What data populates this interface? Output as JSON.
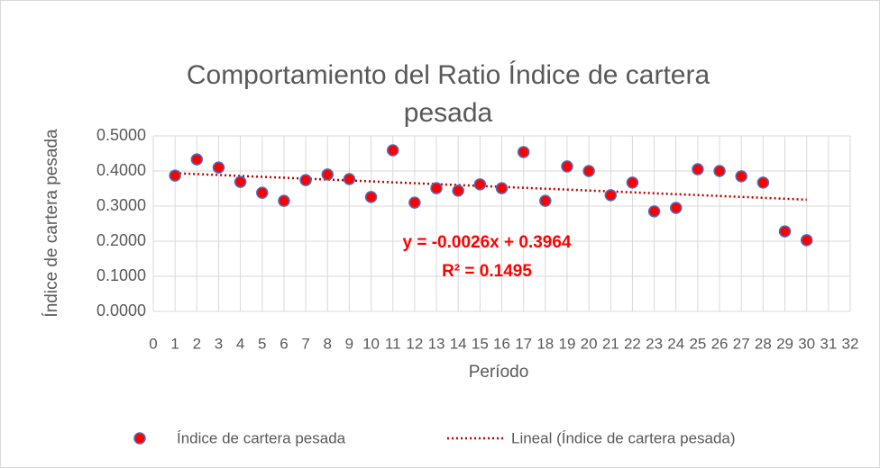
{
  "chart_data": {
    "type": "scatter",
    "title": [
      "Comportamiento del Ratio Índice de cartera",
      "pesada"
    ],
    "x_label": "Período",
    "y_label": "Índice de cartera pesada",
    "x": [
      1,
      2,
      3,
      4,
      5,
      6,
      7,
      8,
      9,
      10,
      11,
      12,
      13,
      14,
      15,
      16,
      17,
      18,
      19,
      20,
      21,
      22,
      23,
      24,
      25,
      26,
      27,
      28,
      29,
      30
    ],
    "series": [
      {
        "name": "Índice de cartera pesada",
        "color": "#ff0000",
        "edge_color": "#4472c4",
        "values": [
          0.387,
          0.433,
          0.41,
          0.369,
          0.338,
          0.315,
          0.374,
          0.39,
          0.377,
          0.326,
          0.459,
          0.31,
          0.351,
          0.344,
          0.362,
          0.351,
          0.454,
          0.315,
          0.413,
          0.4,
          0.331,
          0.367,
          0.285,
          0.295,
          0.405,
          0.4,
          0.385,
          0.367,
          0.228,
          0.203
        ]
      }
    ],
    "trendline": {
      "name": "Lineal (Índice de cartera pesada)",
      "color": "#c00000",
      "slope": -0.0026,
      "intercept": 0.3964,
      "equation": "y = -0.0026x + 0.3964",
      "r_squared": 0.1495,
      "r_squared_label": "R² = 0.1495",
      "label_color": "#ff0000"
    },
    "xlim": [
      0,
      32
    ],
    "xticks": [
      0,
      1,
      2,
      3,
      4,
      5,
      6,
      7,
      8,
      9,
      10,
      11,
      12,
      13,
      14,
      15,
      16,
      17,
      18,
      19,
      20,
      21,
      22,
      23,
      24,
      25,
      26,
      27,
      28,
      29,
      30,
      31,
      32
    ],
    "ylim": [
      0,
      0.5
    ],
    "yticks": [
      {
        "value": 0,
        "label": "0.0000"
      },
      {
        "value": 0.1,
        "label": "0.1000"
      },
      {
        "value": 0.2,
        "label": "0.2000"
      },
      {
        "value": 0.3,
        "label": "0.3000"
      },
      {
        "value": 0.4,
        "label": "0.4000"
      },
      {
        "value": 0.5,
        "label": "0.5000"
      }
    ],
    "grid": true,
    "legend": "bottom"
  }
}
